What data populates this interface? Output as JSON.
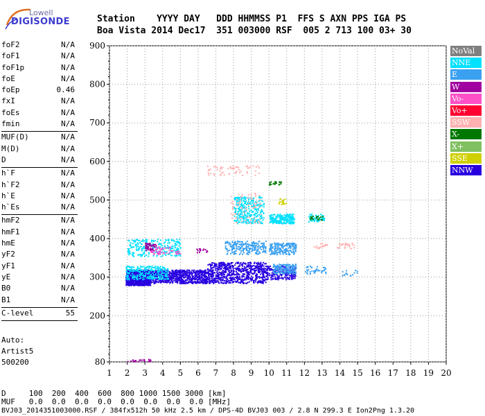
{
  "logo": {
    "line1": "Lowell",
    "line2": "DIGISONDE"
  },
  "header": {
    "row1": "Station    YYYY DAY   DDD HHMMSS P1  FFS S AXN PPS IGA PS",
    "row2": "Boa Vista 2014 Dec17  351 003000 RSF  005 2 713 100 03+ 30"
  },
  "params": {
    "group1": [
      {
        "name": "foF2",
        "value": "N/A"
      },
      {
        "name": "foF1",
        "value": "N/A"
      },
      {
        "name": "foF1p",
        "value": "N/A"
      },
      {
        "name": "foE",
        "value": "N/A"
      },
      {
        "name": "foEp",
        "value": "0.46"
      },
      {
        "name": "fxI",
        "value": "N/A"
      },
      {
        "name": "foEs",
        "value": "N/A"
      },
      {
        "name": "fmin",
        "value": "N/A"
      }
    ],
    "group2": [
      {
        "name": "MUF(D)",
        "value": "N/A"
      },
      {
        "name": "M(D)",
        "value": "N/A"
      },
      {
        "name": "D",
        "value": "N/A"
      }
    ],
    "group3": [
      {
        "name": "h`F",
        "value": "N/A"
      },
      {
        "name": "h`F2",
        "value": "N/A"
      },
      {
        "name": "h`E",
        "value": "N/A"
      },
      {
        "name": "h`Es",
        "value": "N/A"
      }
    ],
    "group4": [
      {
        "name": "hmF2",
        "value": "N/A"
      },
      {
        "name": "hmF1",
        "value": "N/A"
      },
      {
        "name": "hmE",
        "value": "N/A"
      },
      {
        "name": "yF2",
        "value": "N/A"
      },
      {
        "name": "yF1",
        "value": "N/A"
      },
      {
        "name": "yE",
        "value": "N/A"
      },
      {
        "name": "B0",
        "value": "N/A"
      },
      {
        "name": "B1",
        "value": "N/A"
      }
    ],
    "group5": [
      {
        "name": "C-level",
        "value": "55"
      }
    ]
  },
  "auto": {
    "l1": "Auto:",
    "l2": "Artist5",
    "l3": "500200"
  },
  "footer": {
    "row1": "D     100  200  400  600  800 1000 1500 3000 [km]",
    "row2": "MUF   0.0  0.0  0.0  0.0  0.0  0.0  0.0  0.0 [MHz]",
    "row3": "BVJ03_2014351003000.RSF / 384fx512h 50 kHz 2.5 km / DPS-4D BVJ03 003 / 2.8 N 299.3 E Ion2Png 1.3.20"
  },
  "legend": [
    {
      "label": "NoVal",
      "color": "#808080"
    },
    {
      "label": "NNE",
      "color": "#00e0ff"
    },
    {
      "label": "E",
      "color": "#3aa0f0"
    },
    {
      "label": "W",
      "color": "#a000a0"
    },
    {
      "label": "Vo-",
      "color": "#ff50c8"
    },
    {
      "label": "Vo+",
      "color": "#ff0030"
    },
    {
      "label": "SSW",
      "color": "#ffb0b0"
    },
    {
      "label": "X-",
      "color": "#007800"
    },
    {
      "label": "X+",
      "color": "#80c060"
    },
    {
      "label": "SSE",
      "color": "#d0d000"
    },
    {
      "label": "NNW",
      "color": "#2800e0"
    }
  ],
  "chart_data": {
    "type": "scatter",
    "x_ticks": [
      1,
      2,
      3,
      4,
      5,
      6,
      7,
      8,
      9,
      10,
      11,
      12,
      13,
      14,
      15,
      16,
      17,
      18,
      19,
      20
    ],
    "y_ticks": [
      80,
      200,
      300,
      400,
      500,
      600,
      700,
      800,
      900
    ],
    "xlim": [
      1,
      20
    ],
    "ylim": [
      80,
      900
    ],
    "grid": true,
    "series": [
      {
        "name": "NNW",
        "regions": [
          [
            1.9,
            3.3,
            280,
            320
          ],
          [
            3.3,
            6.5,
            285,
            320
          ],
          [
            6.5,
            9.8,
            285,
            340
          ],
          [
            9.8,
            11.5,
            295,
            330
          ]
        ],
        "count": [
          900,
          700,
          700,
          220
        ]
      },
      {
        "name": "NNE",
        "regions": [
          [
            1.9,
            4.3,
            295,
            330
          ],
          [
            2.0,
            5.0,
            355,
            400
          ],
          [
            8.0,
            9.7,
            440,
            510
          ],
          [
            10.0,
            11.4,
            440,
            465
          ],
          [
            12.2,
            13.1,
            445,
            465
          ]
        ],
        "count": [
          250,
          250,
          300,
          220,
          60
        ]
      },
      {
        "name": "E",
        "regions": [
          [
            7.5,
            9.8,
            360,
            395
          ],
          [
            10.0,
            11.5,
            360,
            390
          ],
          [
            10.2,
            11.5,
            310,
            335
          ],
          [
            12.0,
            13.2,
            310,
            330
          ],
          [
            14.0,
            15.0,
            305,
            320
          ]
        ],
        "count": [
          220,
          180,
          160,
          40,
          15
        ]
      },
      {
        "name": "W",
        "regions": [
          [
            3.0,
            3.6,
            370,
            390
          ],
          [
            5.8,
            6.5,
            365,
            375
          ],
          [
            2.0,
            3.3,
            82,
            88
          ]
        ],
        "count": [
          60,
          15,
          25
        ]
      },
      {
        "name": "Vo-",
        "regions": [
          [
            3.2,
            4.5,
            360,
            380
          ],
          [
            4.5,
            5.0,
            360,
            370
          ]
        ],
        "count": [
          40,
          10
        ]
      },
      {
        "name": "SSW",
        "regions": [
          [
            6.5,
            9.5,
            565,
            590
          ],
          [
            7.8,
            9.5,
            440,
            520
          ],
          [
            12.5,
            13.3,
            375,
            390
          ],
          [
            13.8,
            14.8,
            375,
            390
          ]
        ],
        "count": [
          60,
          80,
          20,
          25
        ]
      },
      {
        "name": "X-",
        "regions": [
          [
            10.0,
            10.8,
            540,
            550
          ],
          [
            12.3,
            13.0,
            450,
            460
          ]
        ],
        "count": [
          20,
          20
        ]
      },
      {
        "name": "SSE",
        "regions": [
          [
            10.5,
            11.0,
            490,
            505
          ]
        ],
        "count": [
          20
        ]
      }
    ]
  }
}
